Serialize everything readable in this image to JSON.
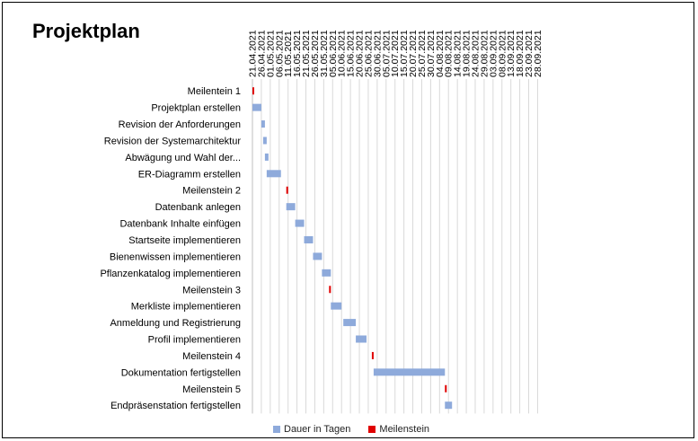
{
  "chart_data": {
    "type": "bar",
    "subtype": "gantt",
    "title": "Projektplan",
    "xlabel": "",
    "ylabel": "",
    "x_axis_position": "top",
    "x_ticks": [
      "21.04.2021",
      "26.04.2021",
      "01.05.2021",
      "06.05.2021",
      "11.05.2021",
      "16.05.2021",
      "21.05.2021",
      "26.05.2021",
      "31.05.2021",
      "05.06.2021",
      "10.06.2021",
      "15.06.2021",
      "20.06.2021",
      "25.06.2021",
      "30.06.2021",
      "05.07.2021",
      "10.07.2021",
      "15.07.2021",
      "20.07.2021",
      "25.07.2021",
      "30.07.2021",
      "04.08.2021",
      "09.08.2021",
      "14.08.2021",
      "19.08.2021",
      "24.08.2021",
      "29.08.2021",
      "03.09.2021",
      "08.09.2021",
      "13.09.2021",
      "18.09.2021",
      "23.09.2021",
      "28.09.2021"
    ],
    "grid": true,
    "legend_position": "bottom",
    "legend": [
      {
        "name": "Dauer in Tagen",
        "color": "#8eaadb"
      },
      {
        "name": "Meilenstein",
        "color": "#e00000"
      }
    ],
    "tasks": [
      {
        "name": "Meilentein 1",
        "start": "2021-04-21",
        "end": "2021-04-22",
        "milestone": true
      },
      {
        "name": "Projektplan erstellen",
        "start": "2021-04-21",
        "end": "2021-04-26",
        "milestone": false
      },
      {
        "name": "Revision der Anforderungen",
        "start": "2021-04-26",
        "end": "2021-04-28",
        "milestone": false
      },
      {
        "name": "Revision der Systemarchitektur",
        "start": "2021-04-27",
        "end": "2021-04-29",
        "milestone": false
      },
      {
        "name": "Abwägung und Wahl der...",
        "start": "2021-04-28",
        "end": "2021-04-30",
        "milestone": false
      },
      {
        "name": "ER-Diagramm erstellen",
        "start": "2021-04-29",
        "end": "2021-05-07",
        "milestone": false
      },
      {
        "name": "Meilenstein 2",
        "start": "2021-05-10",
        "end": "2021-05-11",
        "milestone": true
      },
      {
        "name": "Datenbank anlegen",
        "start": "2021-05-10",
        "end": "2021-05-15",
        "milestone": false
      },
      {
        "name": "Datenbank Inhalte einfügen",
        "start": "2021-05-15",
        "end": "2021-05-20",
        "milestone": false
      },
      {
        "name": "Startseite implementieren",
        "start": "2021-05-20",
        "end": "2021-05-25",
        "milestone": false
      },
      {
        "name": "Bienenwissen implementieren",
        "start": "2021-05-25",
        "end": "2021-05-30",
        "milestone": false
      },
      {
        "name": "Pflanzenkatalog implementieren",
        "start": "2021-05-30",
        "end": "2021-06-04",
        "milestone": false
      },
      {
        "name": "Meilenstein 3",
        "start": "2021-06-03",
        "end": "2021-06-04",
        "milestone": true
      },
      {
        "name": "Merkliste implementieren",
        "start": "2021-06-04",
        "end": "2021-06-10",
        "milestone": false
      },
      {
        "name": "Anmeldung und Registrierung",
        "start": "2021-06-11",
        "end": "2021-06-18",
        "milestone": false
      },
      {
        "name": "Profil implementieren",
        "start": "2021-06-18",
        "end": "2021-06-24",
        "milestone": false
      },
      {
        "name": "Meilenstein 4",
        "start": "2021-06-27",
        "end": "2021-06-28",
        "milestone": true
      },
      {
        "name": "Dokumentation fertigstellen",
        "start": "2021-06-28",
        "end": "2021-08-07",
        "milestone": false
      },
      {
        "name": "Meilenstein 5",
        "start": "2021-08-07",
        "end": "2021-08-08",
        "milestone": true
      },
      {
        "name": "Endpräsenstation fertigstellen",
        "start": "2021-08-07",
        "end": "2021-08-11",
        "milestone": false
      }
    ]
  }
}
